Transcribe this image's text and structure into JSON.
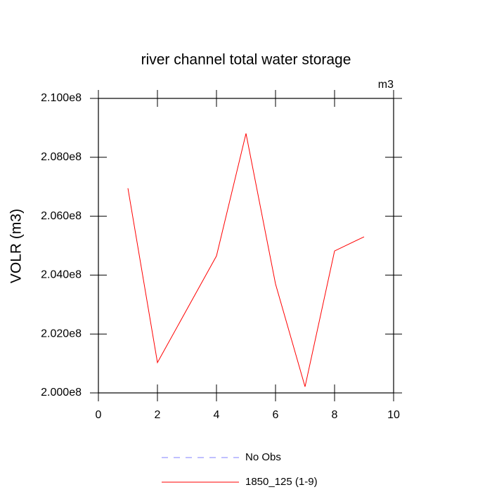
{
  "chart_data": {
    "type": "line",
    "title": "river channel total water storage",
    "units": "m3",
    "ylabel": "VOLR  (m3)",
    "x": [
      1,
      2,
      3,
      4,
      5,
      6,
      7,
      8,
      9
    ],
    "series": [
      {
        "name": "No Obs",
        "color": "#8080ff",
        "dash": true,
        "values": [
          null,
          null,
          null,
          null,
          null,
          null,
          null,
          null,
          null
        ]
      },
      {
        "name": "1850_125 (1-9)",
        "color": "#ff0000",
        "dash": false,
        "values": [
          206950000,
          201030000,
          202840000,
          204650000,
          208810000,
          203700000,
          200210000,
          204820000,
          205300000
        ]
      }
    ],
    "xlim": [
      0,
      10
    ],
    "xticks": [
      0,
      2,
      4,
      6,
      8,
      10
    ],
    "ylim": [
      200000000,
      210000000
    ],
    "yticks": [
      {
        "value": 200000000,
        "label": "2.000e8"
      },
      {
        "value": 202000000,
        "label": "2.020e8"
      },
      {
        "value": 204000000,
        "label": "2.040e8"
      },
      {
        "value": 206000000,
        "label": "2.060e8"
      },
      {
        "value": 208000000,
        "label": "2.080e8"
      },
      {
        "value": 210000000,
        "label": "2.100e8"
      }
    ]
  }
}
